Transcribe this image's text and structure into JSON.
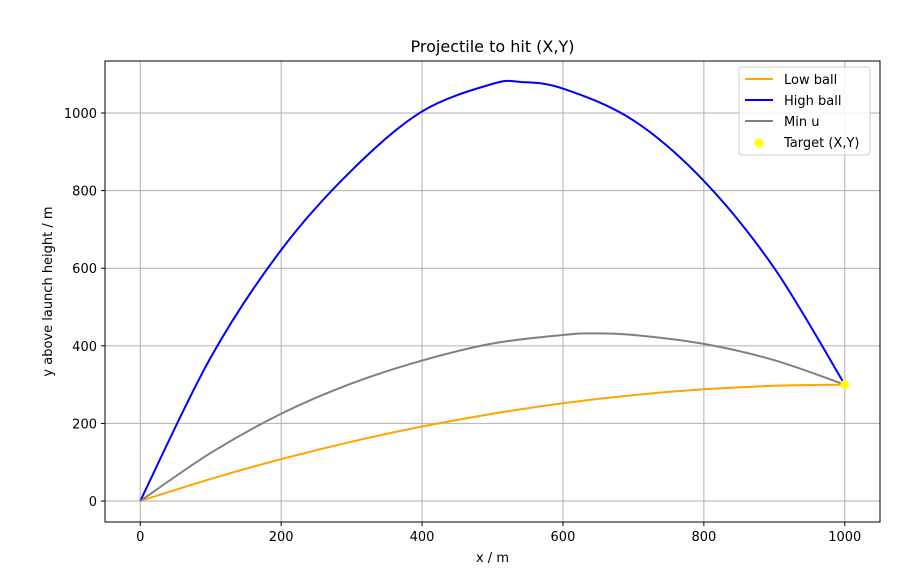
{
  "chart_data": {
    "type": "line",
    "title": "Projectile to hit (X,Y)",
    "xlabel": "x / m",
    "ylabel": "y above launch height / m",
    "xlim": [
      -50,
      1050
    ],
    "ylim": [
      -54,
      1134
    ],
    "xticks": [
      0,
      200,
      400,
      600,
      800,
      1000
    ],
    "yticks": [
      0,
      200,
      400,
      600,
      800,
      1000
    ],
    "grid": true,
    "legend_position": "top-right",
    "series": [
      {
        "name": "Low ball",
        "color": "#ffa500",
        "kind": "line",
        "x": [
          0,
          100,
          200,
          300,
          400,
          500,
          600,
          700,
          800,
          900,
          1000
        ],
        "y": [
          0,
          57,
          108,
          153,
          192,
          225,
          252,
          273,
          288,
          297,
          300
        ]
      },
      {
        "name": "High ball",
        "color": "#0000ff",
        "kind": "line",
        "x": [
          0,
          100,
          200,
          300,
          400,
          500,
          540,
          600,
          700,
          800,
          900,
          1000
        ],
        "y": [
          0,
          370,
          647,
          852,
          1004,
          1075,
          1080,
          1063,
          981,
          825,
          600,
          300
        ]
      },
      {
        "name": "Min u",
        "color": "#808080",
        "kind": "line",
        "x": [
          0,
          100,
          200,
          300,
          400,
          500,
          600,
          640,
          700,
          800,
          900,
          1000
        ],
        "y": [
          0,
          124,
          225,
          303,
          362,
          406,
          428,
          432,
          428,
          405,
          363,
          300
        ]
      },
      {
        "name": "Target (X,Y)",
        "color": "#ffff00",
        "kind": "scatter",
        "x": [
          1000
        ],
        "y": [
          300
        ]
      }
    ]
  }
}
